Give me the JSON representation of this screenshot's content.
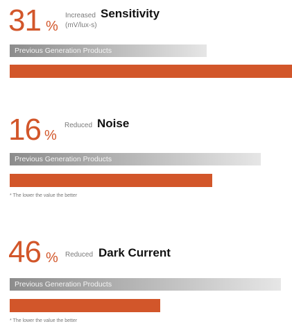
{
  "chart_data": [
    {
      "type": "bar",
      "percent": "31",
      "percent_sign": "%",
      "change_word": "Increased",
      "metric": "Sensitivity",
      "unit": "(mV/lux-s)",
      "categories": [
        "Previous Generation Products",
        ""
      ],
      "values": [
        100,
        131
      ],
      "note": ""
    },
    {
      "type": "bar",
      "percent": "16",
      "percent_sign": "%",
      "change_word": "Reduced",
      "metric": "Noise",
      "unit": "",
      "categories": [
        "Previous Generation Products",
        ""
      ],
      "values": [
        100,
        84
      ],
      "note": "* The lower the value the better"
    },
    {
      "type": "bar",
      "percent": "46",
      "percent_sign": "%",
      "change_word": "Reduced",
      "metric": "Dark Current",
      "unit": "",
      "categories": [
        "Previous Generation Products",
        ""
      ],
      "values": [
        100,
        54
      ],
      "note": "* The lower the value the better"
    }
  ],
  "colors": {
    "accent": "#d2562a",
    "previous_bar_dark": "#8c8c8c",
    "previous_bar_light": "#e6e6e6"
  }
}
